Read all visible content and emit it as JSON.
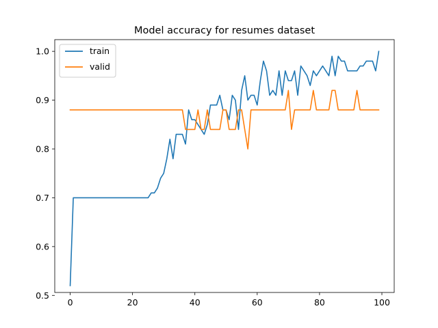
{
  "chart_data": {
    "type": "line",
    "title": "Model accuracy for resumes dataset",
    "xlabel": "",
    "ylabel": "",
    "xlim": [
      -4.95,
      103.95
    ],
    "ylim": [
      0.506,
      1.024
    ],
    "xticks": [
      0,
      20,
      40,
      60,
      80,
      100
    ],
    "yticks": [
      0.5,
      0.6,
      0.7,
      0.8,
      0.9,
      1.0
    ],
    "ytick_labels": [
      "0.5",
      "0.6",
      "0.7",
      "0.8",
      "0.9",
      "1.0"
    ],
    "grid": false,
    "legend_position": "top-left",
    "series": [
      {
        "name": "train",
        "color": "#1f77b4",
        "x": [
          0,
          1,
          2,
          3,
          4,
          5,
          6,
          7,
          8,
          9,
          10,
          11,
          12,
          13,
          14,
          15,
          16,
          17,
          18,
          19,
          20,
          21,
          22,
          23,
          24,
          25,
          26,
          27,
          28,
          29,
          30,
          31,
          32,
          33,
          34,
          35,
          36,
          37,
          38,
          39,
          40,
          41,
          42,
          43,
          44,
          45,
          46,
          47,
          48,
          49,
          50,
          51,
          52,
          53,
          54,
          55,
          56,
          57,
          58,
          59,
          60,
          61,
          62,
          63,
          64,
          65,
          66,
          67,
          68,
          69,
          70,
          71,
          72,
          73,
          74,
          75,
          76,
          77,
          78,
          79,
          80,
          81,
          82,
          83,
          84,
          85,
          86,
          87,
          88,
          89,
          90,
          91,
          92,
          93,
          94,
          95,
          96,
          97,
          98,
          99
        ],
        "values": [
          0.52,
          0.7,
          0.7,
          0.7,
          0.7,
          0.7,
          0.7,
          0.7,
          0.7,
          0.7,
          0.7,
          0.7,
          0.7,
          0.7,
          0.7,
          0.7,
          0.7,
          0.7,
          0.7,
          0.7,
          0.7,
          0.7,
          0.7,
          0.7,
          0.7,
          0.7,
          0.71,
          0.71,
          0.72,
          0.74,
          0.75,
          0.78,
          0.82,
          0.78,
          0.83,
          0.83,
          0.83,
          0.81,
          0.88,
          0.86,
          0.86,
          0.85,
          0.84,
          0.83,
          0.85,
          0.89,
          0.89,
          0.89,
          0.91,
          0.88,
          0.88,
          0.86,
          0.91,
          0.9,
          0.84,
          0.92,
          0.95,
          0.9,
          0.91,
          0.91,
          0.89,
          0.94,
          0.98,
          0.96,
          0.91,
          0.92,
          0.91,
          0.96,
          0.91,
          0.96,
          0.94,
          0.94,
          0.96,
          0.91,
          0.97,
          0.96,
          0.95,
          0.93,
          0.96,
          0.95,
          0.96,
          0.97,
          0.96,
          0.95,
          0.99,
          0.95,
          0.99,
          0.98,
          0.98,
          0.96,
          0.96,
          0.96,
          0.96,
          0.97,
          0.97,
          0.98,
          0.98,
          0.98,
          0.96,
          1.0
        ]
      },
      {
        "name": "valid",
        "color": "#ff7f0e",
        "x": [
          0,
          1,
          2,
          3,
          4,
          5,
          6,
          7,
          8,
          9,
          10,
          11,
          12,
          13,
          14,
          15,
          16,
          17,
          18,
          19,
          20,
          21,
          22,
          23,
          24,
          25,
          26,
          27,
          28,
          29,
          30,
          31,
          32,
          33,
          34,
          35,
          36,
          37,
          38,
          39,
          40,
          41,
          42,
          43,
          44,
          45,
          46,
          47,
          48,
          49,
          50,
          51,
          52,
          53,
          54,
          55,
          56,
          57,
          58,
          59,
          60,
          61,
          62,
          63,
          64,
          65,
          66,
          67,
          68,
          69,
          70,
          71,
          72,
          73,
          74,
          75,
          76,
          77,
          78,
          79,
          80,
          81,
          82,
          83,
          84,
          85,
          86,
          87,
          88,
          89,
          90,
          91,
          92,
          93,
          94,
          95,
          96,
          97,
          98,
          99
        ],
        "values": [
          0.88,
          0.88,
          0.88,
          0.88,
          0.88,
          0.88,
          0.88,
          0.88,
          0.88,
          0.88,
          0.88,
          0.88,
          0.88,
          0.88,
          0.88,
          0.88,
          0.88,
          0.88,
          0.88,
          0.88,
          0.88,
          0.88,
          0.88,
          0.88,
          0.88,
          0.88,
          0.88,
          0.88,
          0.88,
          0.88,
          0.88,
          0.88,
          0.88,
          0.88,
          0.88,
          0.88,
          0.88,
          0.84,
          0.84,
          0.84,
          0.84,
          0.88,
          0.84,
          0.84,
          0.88,
          0.84,
          0.84,
          0.84,
          0.84,
          0.88,
          0.88,
          0.84,
          0.84,
          0.84,
          0.88,
          0.88,
          0.84,
          0.8,
          0.88,
          0.88,
          0.88,
          0.88,
          0.88,
          0.88,
          0.88,
          0.88,
          0.88,
          0.88,
          0.88,
          0.88,
          0.92,
          0.84,
          0.88,
          0.88,
          0.88,
          0.88,
          0.88,
          0.88,
          0.92,
          0.88,
          0.88,
          0.88,
          0.88,
          0.88,
          0.92,
          0.92,
          0.88,
          0.88,
          0.88,
          0.88,
          0.88,
          0.88,
          0.92,
          0.88,
          0.88,
          0.88,
          0.88,
          0.88,
          0.88,
          0.88
        ]
      }
    ]
  }
}
